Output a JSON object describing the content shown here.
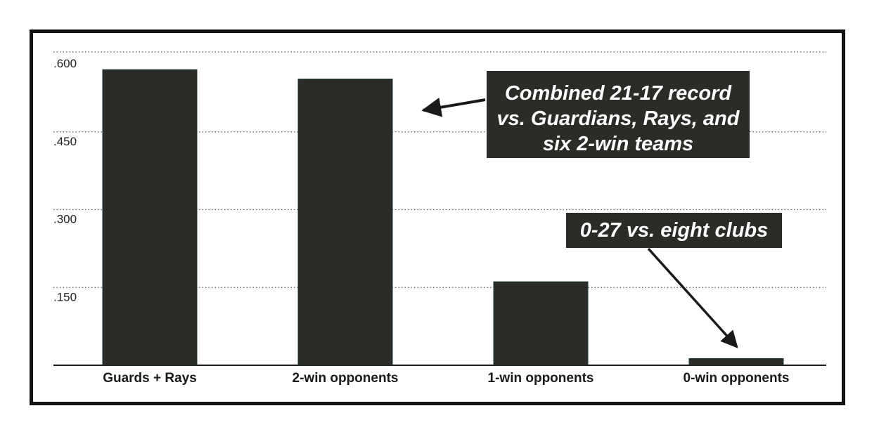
{
  "chart_data": {
    "type": "bar",
    "categories": [
      "Guards + Rays",
      "2-win opponents",
      "1-win opponents",
      "0-win opponents"
    ],
    "values": [
      0.57,
      0.552,
      0.161,
      0.013
    ],
    "ylim": [
      0,
      0.6
    ],
    "yticks": [
      ".150",
      ".300",
      ".450",
      ".600"
    ],
    "ytick_values": [
      0.15,
      0.3,
      0.45,
      0.6
    ],
    "grid": "dotted horizontal",
    "bar_color": "#2b2b28",
    "annotations": [
      {
        "lines": [
          "Combined 21-17 record",
          "vs. Guardians, Rays, and",
          "six 2-win teams"
        ],
        "points_to": "2-win opponents"
      },
      {
        "text": "0-27 vs. eight clubs",
        "points_to": "0-win opponents"
      }
    ]
  }
}
